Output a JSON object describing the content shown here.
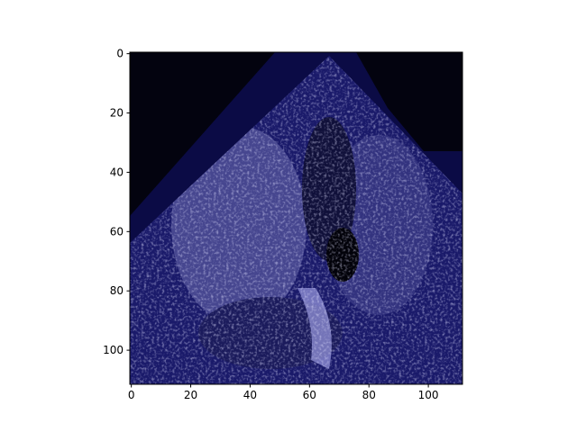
{
  "chart_data": {
    "type": "image",
    "xlim": [
      -0.5,
      111.5
    ],
    "ylim": [
      111.5,
      -0.5
    ],
    "xticks": [
      0,
      20,
      40,
      60,
      80,
      100
    ],
    "yticks": [
      0,
      20,
      40,
      60,
      80,
      100
    ]
  }
}
